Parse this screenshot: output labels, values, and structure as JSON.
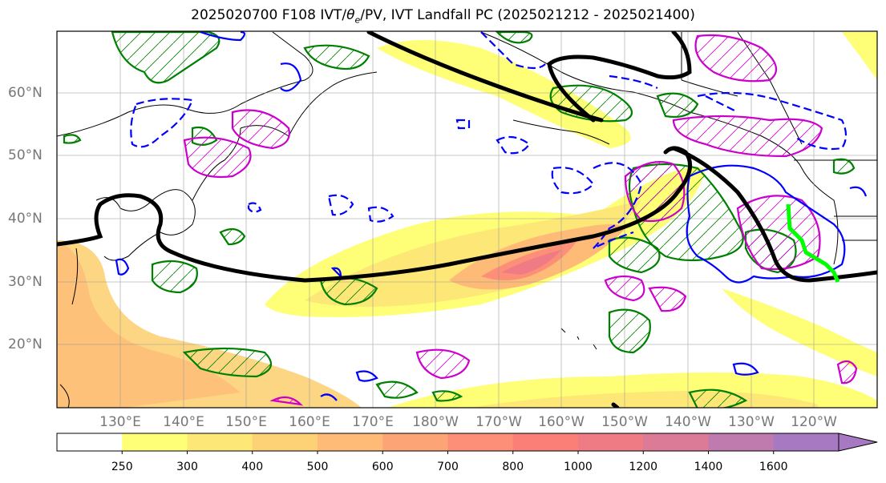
{
  "title_main": "2025020700 F108 IVT/",
  "title_theta": "θ",
  "title_sub": "e",
  "title_rest": "/PV, IVT Landfall PC (2025021212 - 2025021400)",
  "lat_labels": [
    "60°N",
    "50°N",
    "40°N",
    "30°N",
    "20°N"
  ],
  "lon_labels": [
    "130°E",
    "140°E",
    "150°E",
    "160°E",
    "170°E",
    "180°W",
    "170°W",
    "160°W",
    "150°W",
    "140°W",
    "130°W",
    "120°W"
  ],
  "colorbar": {
    "levels": [
      "250",
      "300",
      "400",
      "500",
      "600",
      "700",
      "800",
      "1000",
      "1200",
      "1400",
      "1600"
    ],
    "colors": [
      "#ffffff",
      "#fefe77",
      "#fde877",
      "#fdd277",
      "#fdbb77",
      "#fda477",
      "#fd8e77",
      "#fb7f77",
      "#ef7b85",
      "#dc7b97",
      "#c07bae",
      "#a679c2"
    ]
  },
  "contour_colors": {
    "theta_e": "#000000",
    "pv_positive": "#008000",
    "pv_negative": "#0000ff",
    "region": "#cc00cc",
    "landfall": "#00ff00"
  }
}
